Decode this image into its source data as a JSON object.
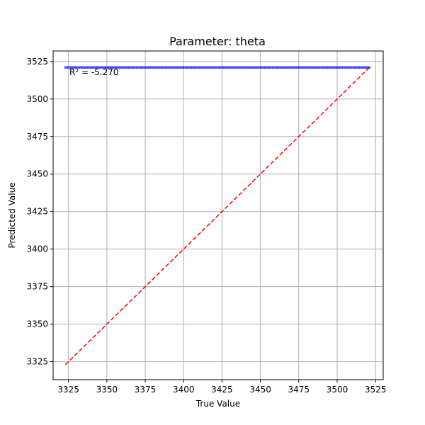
{
  "chart_data": {
    "type": "scatter",
    "title": "Parameter: theta",
    "xlabel": "True Value",
    "ylabel": "Predicted Value",
    "xlim": [
      3315,
      3530
    ],
    "ylim": [
      3313,
      3532
    ],
    "xticks": [
      3325,
      3350,
      3375,
      3400,
      3425,
      3450,
      3475,
      3500,
      3525
    ],
    "yticks": [
      3325,
      3350,
      3375,
      3400,
      3425,
      3450,
      3475,
      3500,
      3525
    ],
    "grid": true,
    "annotation": "R² = -5.270",
    "colors": {
      "points": "#0000ff",
      "reference_line": "#ff0000",
      "grid": "#b0b0b0"
    },
    "series": [
      {
        "kind": "scatter",
        "x_range": [
          3323,
          3521
        ],
        "y_constant": 3521,
        "count": 200
      },
      {
        "kind": "reference-line",
        "style": "dashed",
        "x": [
          3323,
          3521
        ],
        "y": [
          3323,
          3521
        ]
      }
    ]
  }
}
